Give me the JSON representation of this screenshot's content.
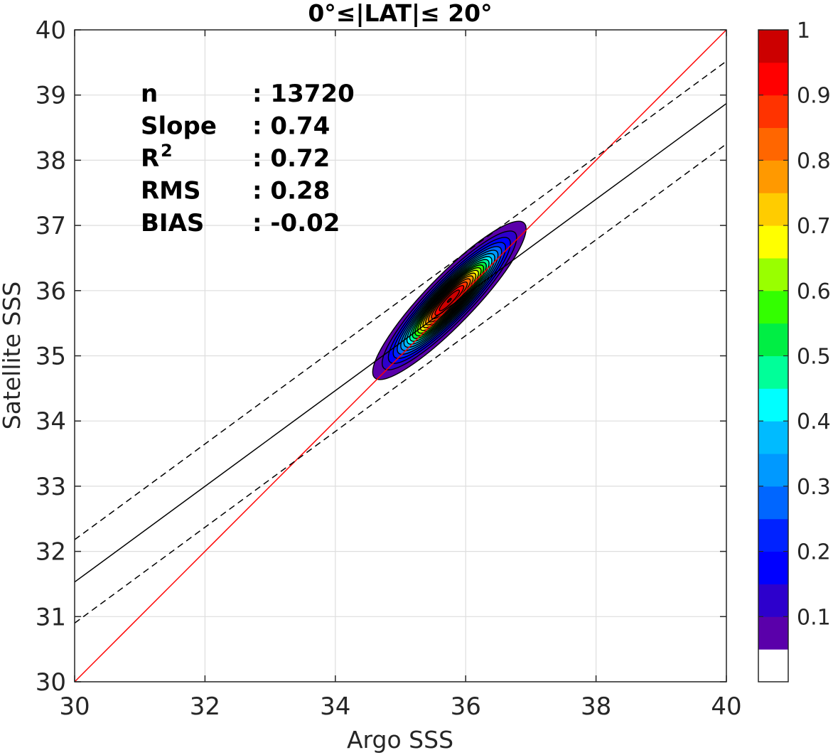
{
  "chart_data": {
    "type": "contour",
    "title": "0°≤|LAT|≤ 20°",
    "xlabel": "Argo SSS",
    "ylabel": "Satellite SSS",
    "xlim": [
      30,
      40
    ],
    "ylim": [
      30,
      40
    ],
    "xticks": [
      "30",
      "32",
      "34",
      "36",
      "38",
      "40"
    ],
    "yticks": [
      "30",
      "31",
      "32",
      "33",
      "34",
      "35",
      "36",
      "37",
      "38",
      "39",
      "40"
    ],
    "grid": true,
    "stats": [
      {
        "key": "n",
        "value": ": 13720"
      },
      {
        "key": "Slope",
        "value": ": 0.74"
      },
      {
        "key": "R",
        "sup": "2",
        "value": ": 0.72"
      },
      {
        "key": "RMS",
        "value": ": 0.28"
      },
      {
        "key": "BIAS",
        "value": ": -0.02"
      }
    ],
    "lines": [
      {
        "kind": "one-to-one",
        "color": "#ff0000",
        "style": "solid",
        "x": [
          30,
          40
        ],
        "y": [
          30,
          40
        ]
      },
      {
        "kind": "regression",
        "color": "#000000",
        "style": "solid",
        "x": [
          30,
          40
        ],
        "y": [
          31.53,
          38.87
        ]
      },
      {
        "kind": "regression-upper",
        "color": "#000000",
        "style": "dashed",
        "x": [
          30,
          40
        ],
        "y": [
          32.18,
          39.52
        ]
      },
      {
        "kind": "regression-lower",
        "color": "#000000",
        "style": "dashed",
        "x": [
          30,
          40
        ],
        "y": [
          30.9,
          38.25
        ]
      }
    ],
    "density": {
      "center": [
        35.75,
        35.85
      ],
      "angle_deg": 46,
      "half_major_max": 1.65,
      "half_minor_max": 0.37,
      "levels": [
        0.1,
        0.2,
        0.3,
        0.4,
        0.5,
        0.6,
        0.7,
        0.8,
        0.9
      ]
    },
    "colorbar": {
      "ticks": [
        "0.1",
        "0.2",
        "0.3",
        "0.4",
        "0.5",
        "0.6",
        "0.7",
        "0.8",
        "0.9",
        "1"
      ],
      "tick_values": [
        0.1,
        0.2,
        0.3,
        0.4,
        0.5,
        0.6,
        0.7,
        0.8,
        0.9,
        1.0
      ],
      "range": [
        0,
        1
      ],
      "colors": [
        "#ffffff",
        "#5a00aa",
        "#2d00cc",
        "#0000ff",
        "#0022ff",
        "#0066ff",
        "#0099ff",
        "#00bbff",
        "#00ffff",
        "#00ff99",
        "#00ee44",
        "#33ff00",
        "#99ff00",
        "#ffff00",
        "#ffcc00",
        "#ff9900",
        "#ff6600",
        "#ff3300",
        "#ff0000",
        "#cc0000",
        "#880000"
      ]
    }
  }
}
